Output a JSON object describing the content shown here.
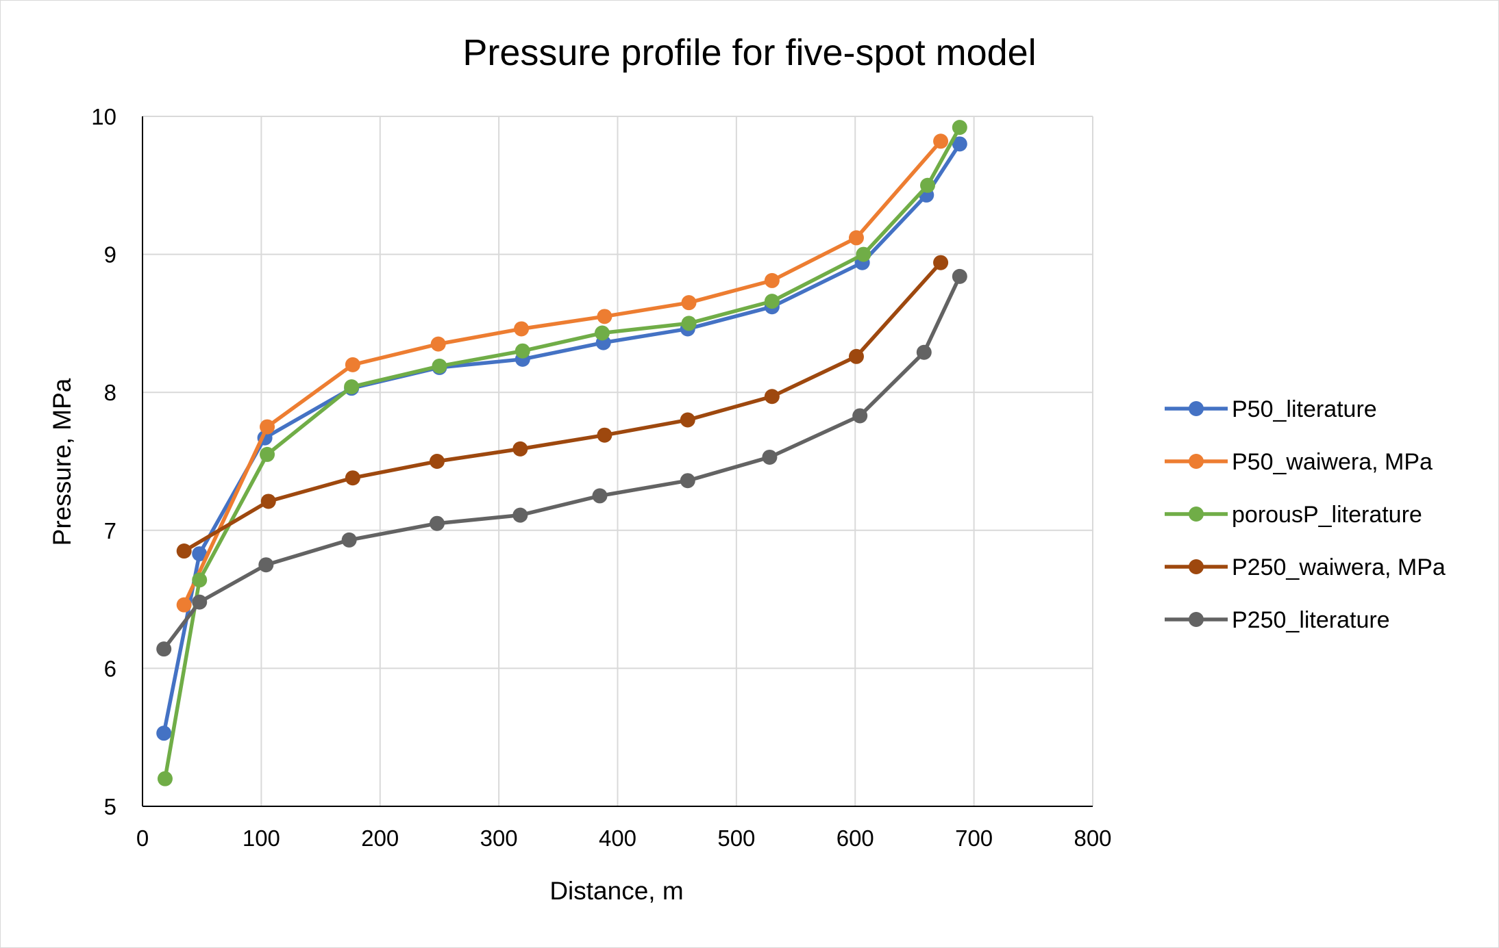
{
  "chart_data": {
    "type": "line",
    "title": "Pressure profile for five-spot model",
    "xlabel": "Distance, m",
    "ylabel": "Pressure, MPa",
    "xlim": [
      0,
      800
    ],
    "ylim": [
      5,
      10
    ],
    "x_ticks": [
      0,
      100,
      200,
      300,
      400,
      500,
      600,
      700,
      800
    ],
    "y_ticks": [
      5,
      6,
      7,
      8,
      9,
      10
    ],
    "grid": true,
    "legend_position": "right",
    "series": [
      {
        "name": "P50_literature",
        "color": "#4472C4",
        "points": [
          [
            18,
            5.53
          ],
          [
            48,
            6.83
          ],
          [
            103,
            7.67
          ],
          [
            176,
            8.03
          ],
          [
            250,
            8.18
          ],
          [
            320,
            8.24
          ],
          [
            388,
            8.36
          ],
          [
            459,
            8.46
          ],
          [
            530,
            8.62
          ],
          [
            606,
            8.94
          ],
          [
            660,
            9.43
          ],
          [
            688,
            9.8
          ]
        ]
      },
      {
        "name": "P50_waiwera, MPa",
        "color": "#ED7D31",
        "points": [
          [
            35,
            6.46
          ],
          [
            105,
            7.75
          ],
          [
            177,
            8.2
          ],
          [
            249,
            8.35
          ],
          [
            319,
            8.46
          ],
          [
            389,
            8.55
          ],
          [
            460,
            8.65
          ],
          [
            530,
            8.81
          ],
          [
            601,
            9.12
          ],
          [
            672,
            9.82
          ]
        ]
      },
      {
        "name": "porousP_literature",
        "color": "#70AD47",
        "points": [
          [
            19,
            5.2
          ],
          [
            48,
            6.64
          ],
          [
            105,
            7.55
          ],
          [
            176,
            8.04
          ],
          [
            250,
            8.19
          ],
          [
            320,
            8.3
          ],
          [
            387,
            8.43
          ],
          [
            460,
            8.5
          ],
          [
            530,
            8.66
          ],
          [
            607,
            9.0
          ],
          [
            661,
            9.5
          ],
          [
            688,
            9.92
          ]
        ]
      },
      {
        "name": "P250_waiwera, MPa",
        "color": "#9E480E",
        "points": [
          [
            35,
            6.85
          ],
          [
            106,
            7.21
          ],
          [
            177,
            7.38
          ],
          [
            248,
            7.5
          ],
          [
            318,
            7.59
          ],
          [
            389,
            7.69
          ],
          [
            459,
            7.8
          ],
          [
            530,
            7.97
          ],
          [
            601,
            8.26
          ],
          [
            672,
            8.94
          ]
        ]
      },
      {
        "name": "P250_literature",
        "color": "#636363",
        "points": [
          [
            18,
            6.14
          ],
          [
            48,
            6.48
          ],
          [
            104,
            6.75
          ],
          [
            174,
            6.93
          ],
          [
            248,
            7.05
          ],
          [
            318,
            7.11
          ],
          [
            385,
            7.25
          ],
          [
            459,
            7.36
          ],
          [
            528,
            7.53
          ],
          [
            604,
            7.83
          ],
          [
            658,
            8.29
          ],
          [
            688,
            8.84
          ]
        ]
      }
    ]
  }
}
